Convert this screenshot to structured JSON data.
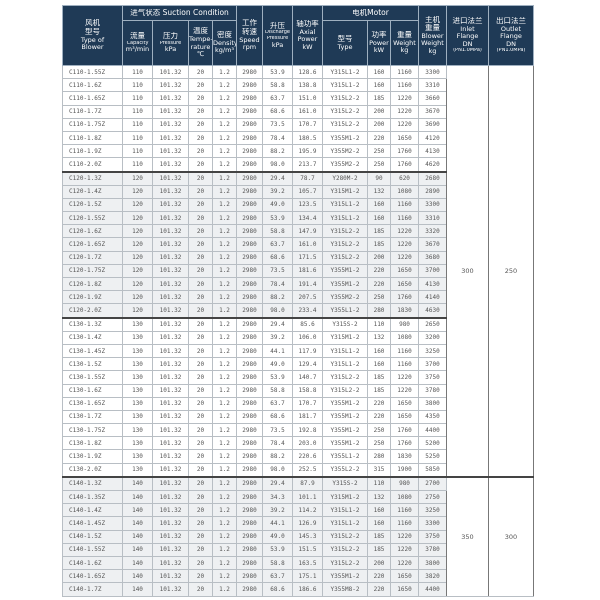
{
  "header": {
    "blower_type": [
      "风机",
      "型号",
      "Type of",
      "Blower"
    ],
    "suction": "进气状态  Suction Condition",
    "capacity": [
      "流量",
      "Capacity",
      "m³/min"
    ],
    "pressure": [
      "压力",
      "Pressure",
      "kPa"
    ],
    "temperature": [
      "温度",
      "Tempe-",
      "rature",
      "℃"
    ],
    "density": [
      "密度",
      "Density",
      "kg/m³"
    ],
    "speed": [
      "工作",
      "转速",
      "Speed",
      "rpm"
    ],
    "discharge": [
      "升压",
      "Discharge",
      "Pressure",
      "kPa"
    ],
    "axial": [
      "轴功率",
      "Axial",
      "Power",
      "kW"
    ],
    "motor": "电机Motor",
    "motor_type": [
      "型号",
      "Type"
    ],
    "motor_power": [
      "功率",
      "Power",
      "kW"
    ],
    "motor_weight": [
      "重量",
      "Weight",
      "kg"
    ],
    "blower_weight": [
      "主机",
      "重量",
      "Blower",
      "Weight",
      "kg"
    ],
    "inlet": [
      "进口法兰",
      "Inlet",
      "Flange",
      "DN",
      "(PN1.0MPa)"
    ],
    "outlet": [
      "出口法兰",
      "Outlet",
      "Flange",
      "DN",
      "(PN1.0MPa)"
    ]
  },
  "groups": [
    {
      "inlet": "300",
      "outlet": "250",
      "span_groups": 3,
      "rows": [
        [
          "C110-1.55Z",
          "110",
          "101.32",
          "20",
          "1.2",
          "2980",
          "53.9",
          "128.6",
          "Y315L1-2",
          "160",
          "1160",
          "3300"
        ],
        [
          "C110-1.6Z",
          "110",
          "101.32",
          "20",
          "1.2",
          "2980",
          "58.8",
          "138.8",
          "Y315L1-2",
          "160",
          "1160",
          "3310"
        ],
        [
          "C110-1.65Z",
          "110",
          "101.32",
          "20",
          "1.2",
          "2980",
          "63.7",
          "151.0",
          "Y315L2-2",
          "185",
          "1220",
          "3660"
        ],
        [
          "C110-1.7Z",
          "110",
          "101.32",
          "20",
          "1.2",
          "2980",
          "68.6",
          "161.0",
          "Y315L2-2",
          "200",
          "1220",
          "3670"
        ],
        [
          "C110-1.75Z",
          "110",
          "101.32",
          "20",
          "1.2",
          "2980",
          "73.5",
          "170.7",
          "Y315L2-2",
          "200",
          "1220",
          "3690"
        ],
        [
          "C110-1.8Z",
          "110",
          "101.32",
          "20",
          "1.2",
          "2980",
          "78.4",
          "180.5",
          "Y355M1-2",
          "220",
          "1650",
          "4120"
        ],
        [
          "C110-1.9Z",
          "110",
          "101.32",
          "20",
          "1.2",
          "2980",
          "88.2",
          "195.9",
          "Y355M2-2",
          "250",
          "1760",
          "4130"
        ],
        [
          "C110-2.0Z",
          "110",
          "101.32",
          "20",
          "1.2",
          "2980",
          "98.0",
          "213.7",
          "Y355M2-2",
          "250",
          "1760",
          "4620"
        ]
      ]
    },
    {
      "rows": [
        [
          "C120-1.3Z",
          "120",
          "101.32",
          "20",
          "1.2",
          "2980",
          "29.4",
          "78.7",
          "Y280M-2",
          "90",
          "620",
          "2680"
        ],
        [
          "C120-1.4Z",
          "120",
          "101.32",
          "20",
          "1.2",
          "2980",
          "39.2",
          "105.7",
          "Y315M1-2",
          "132",
          "1080",
          "2890"
        ],
        [
          "C120-1.5Z",
          "120",
          "101.32",
          "20",
          "1.2",
          "2980",
          "49.0",
          "123.5",
          "Y315L1-2",
          "160",
          "1160",
          "3300"
        ],
        [
          "C120-1.55Z",
          "120",
          "101.32",
          "20",
          "1.2",
          "2980",
          "53.9",
          "134.4",
          "Y315L1-2",
          "160",
          "1160",
          "3310"
        ],
        [
          "C120-1.6Z",
          "120",
          "101.32",
          "20",
          "1.2",
          "2980",
          "58.8",
          "147.9",
          "Y315L2-2",
          "185",
          "1220",
          "3320"
        ],
        [
          "C120-1.65Z",
          "120",
          "101.32",
          "20",
          "1.2",
          "2980",
          "63.7",
          "161.0",
          "Y315L2-2",
          "185",
          "1220",
          "3670"
        ],
        [
          "C120-1.7Z",
          "120",
          "101.32",
          "20",
          "1.2",
          "2980",
          "68.6",
          "171.5",
          "Y315L2-2",
          "200",
          "1220",
          "3680"
        ],
        [
          "C120-1.75Z",
          "120",
          "101.32",
          "20",
          "1.2",
          "2980",
          "73.5",
          "181.6",
          "Y355M1-2",
          "220",
          "1650",
          "3700"
        ],
        [
          "C120-1.8Z",
          "120",
          "101.32",
          "20",
          "1.2",
          "2980",
          "78.4",
          "191.4",
          "Y355M1-2",
          "220",
          "1650",
          "4130"
        ],
        [
          "C120-1.9Z",
          "120",
          "101.32",
          "20",
          "1.2",
          "2980",
          "88.2",
          "207.5",
          "Y355M2-2",
          "250",
          "1760",
          "4140"
        ],
        [
          "C120-2.0Z",
          "120",
          "101.32",
          "20",
          "1.2",
          "2980",
          "98.0",
          "233.4",
          "Y355L1-2",
          "280",
          "1830",
          "4630"
        ]
      ]
    },
    {
      "rows": [
        [
          "C130-1.3Z",
          "130",
          "101.32",
          "20",
          "1.2",
          "2980",
          "29.4",
          "85.6",
          "Y315S-2",
          "110",
          "980",
          "2650"
        ],
        [
          "C130-1.4Z",
          "130",
          "101.32",
          "20",
          "1.2",
          "2980",
          "39.2",
          "106.0",
          "Y315M1-2",
          "132",
          "1080",
          "3200"
        ],
        [
          "C130-1.45Z",
          "130",
          "101.32",
          "20",
          "1.2",
          "2980",
          "44.1",
          "117.9",
          "Y315L1-2",
          "160",
          "1160",
          "3250"
        ],
        [
          "C130-1.5Z",
          "130",
          "101.32",
          "20",
          "1.2",
          "2980",
          "49.0",
          "129.4",
          "Y315L1-2",
          "160",
          "1160",
          "3700"
        ],
        [
          "C130-1.55Z",
          "130",
          "101.32",
          "20",
          "1.2",
          "2980",
          "53.9",
          "140.7",
          "Y315L2-2",
          "185",
          "1220",
          "3750"
        ],
        [
          "C130-1.6Z",
          "130",
          "101.32",
          "20",
          "1.2",
          "2980",
          "58.8",
          "158.8",
          "Y315L2-2",
          "185",
          "1220",
          "3780"
        ],
        [
          "C130-1.65Z",
          "130",
          "101.32",
          "20",
          "1.2",
          "2980",
          "63.7",
          "170.7",
          "Y355M1-2",
          "220",
          "1650",
          "3800"
        ],
        [
          "C130-1.7Z",
          "130",
          "101.32",
          "20",
          "1.2",
          "2980",
          "68.6",
          "181.7",
          "Y355M1-2",
          "220",
          "1650",
          "4350"
        ],
        [
          "C130-1.75Z",
          "130",
          "101.32",
          "20",
          "1.2",
          "2980",
          "73.5",
          "192.8",
          "Y355M1-2",
          "250",
          "1760",
          "4400"
        ],
        [
          "C130-1.8Z",
          "130",
          "101.32",
          "20",
          "1.2",
          "2980",
          "78.4",
          "203.0",
          "Y355M1-2",
          "250",
          "1760",
          "5200"
        ],
        [
          "C130-1.9Z",
          "130",
          "101.32",
          "20",
          "1.2",
          "2980",
          "88.2",
          "220.6",
          "Y355L1-2",
          "280",
          "1830",
          "5250"
        ],
        [
          "C130-2.0Z",
          "130",
          "101.32",
          "20",
          "1.2",
          "2980",
          "98.0",
          "252.5",
          "Y355L2-2",
          "315",
          "1900",
          "5850"
        ]
      ]
    },
    {
      "inlet": "350",
      "outlet": "300",
      "span_groups": 1,
      "rows": [
        [
          "C140-1.3Z",
          "140",
          "101.32",
          "20",
          "1.2",
          "2980",
          "29.4",
          "87.9",
          "Y315S-2",
          "110",
          "980",
          "2700"
        ],
        [
          "C140-1.35Z",
          "140",
          "101.32",
          "20",
          "1.2",
          "2980",
          "34.3",
          "101.1",
          "Y315M1-2",
          "132",
          "1080",
          "2750"
        ],
        [
          "C140-1.4Z",
          "140",
          "101.32",
          "20",
          "1.2",
          "2980",
          "39.2",
          "114.2",
          "Y315L1-2",
          "160",
          "1160",
          "3250"
        ],
        [
          "C140-1.45Z",
          "140",
          "101.32",
          "20",
          "1.2",
          "2980",
          "44.1",
          "126.9",
          "Y315L1-2",
          "160",
          "1160",
          "3300"
        ],
        [
          "C140-1.5Z",
          "140",
          "101.32",
          "20",
          "1.2",
          "2980",
          "49.0",
          "145.3",
          "Y315L2-2",
          "185",
          "1220",
          "3750"
        ],
        [
          "C140-1.55Z",
          "140",
          "101.32",
          "20",
          "1.2",
          "2980",
          "53.9",
          "151.5",
          "Y315L2-2",
          "185",
          "1220",
          "3780"
        ],
        [
          "C140-1.6Z",
          "140",
          "101.32",
          "20",
          "1.2",
          "2980",
          "58.8",
          "163.5",
          "Y315L2-2",
          "200",
          "1220",
          "3800"
        ],
        [
          "C140-1.65Z",
          "140",
          "101.32",
          "20",
          "1.2",
          "2980",
          "63.7",
          "175.1",
          "Y355M1-2",
          "220",
          "1650",
          "3820"
        ],
        [
          "C140-1.7Z",
          "140",
          "101.32",
          "20",
          "1.2",
          "2980",
          "68.6",
          "186.6",
          "Y355M8-2",
          "220",
          "1650",
          "4400"
        ]
      ]
    }
  ]
}
